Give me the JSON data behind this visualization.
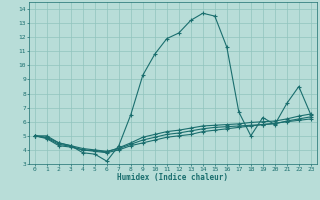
{
  "xlabel": "Humidex (Indice chaleur)",
  "xlim": [
    -0.5,
    23.5
  ],
  "ylim": [
    3,
    14.5
  ],
  "xticks": [
    0,
    1,
    2,
    3,
    4,
    5,
    6,
    7,
    8,
    9,
    10,
    11,
    12,
    13,
    14,
    15,
    16,
    17,
    18,
    19,
    20,
    21,
    22,
    23
  ],
  "yticks": [
    3,
    4,
    5,
    6,
    7,
    8,
    9,
    10,
    11,
    12,
    13,
    14
  ],
  "bg_color": "#b8ddd8",
  "grid_color": "#90c4be",
  "line_color": "#1a6e6e",
  "lines": [
    {
      "x": [
        0,
        1,
        2,
        3,
        4,
        5,
        6,
        7,
        8,
        9,
        10,
        11,
        12,
        13,
        14,
        15,
        16,
        17,
        18,
        19,
        20,
        21,
        22,
        23
      ],
      "y": [
        5.0,
        5.0,
        4.5,
        4.3,
        3.8,
        3.7,
        3.2,
        4.3,
        6.5,
        9.3,
        10.8,
        11.9,
        12.3,
        13.2,
        13.7,
        13.5,
        11.3,
        6.7,
        5.0,
        6.3,
        5.8,
        7.3,
        8.5,
        6.5
      ]
    },
    {
      "x": [
        0,
        1,
        2,
        3,
        4,
        5,
        6,
        7,
        8,
        9,
        10,
        11,
        12,
        13,
        14,
        15,
        16,
        17,
        18,
        19,
        20,
        21,
        22,
        23
      ],
      "y": [
        5.0,
        4.8,
        4.3,
        4.2,
        4.0,
        3.9,
        3.8,
        4.0,
        4.3,
        4.5,
        4.7,
        4.9,
        5.0,
        5.1,
        5.3,
        5.4,
        5.5,
        5.6,
        5.7,
        5.8,
        5.9,
        6.0,
        6.1,
        6.2
      ]
    },
    {
      "x": [
        0,
        1,
        2,
        3,
        4,
        5,
        6,
        7,
        8,
        9,
        10,
        11,
        12,
        13,
        14,
        15,
        16,
        17,
        18,
        19,
        20,
        21,
        22,
        23
      ],
      "y": [
        5.0,
        4.9,
        4.5,
        4.3,
        4.1,
        4.0,
        3.9,
        4.1,
        4.4,
        4.7,
        4.9,
        5.1,
        5.2,
        5.35,
        5.5,
        5.6,
        5.65,
        5.7,
        5.75,
        5.8,
        5.85,
        6.05,
        6.2,
        6.35
      ]
    },
    {
      "x": [
        0,
        1,
        2,
        3,
        4,
        5,
        6,
        7,
        8,
        9,
        10,
        11,
        12,
        13,
        14,
        15,
        16,
        17,
        18,
        19,
        20,
        21,
        22,
        23
      ],
      "y": [
        5.0,
        4.85,
        4.4,
        4.25,
        4.0,
        3.95,
        3.85,
        4.15,
        4.5,
        4.9,
        5.1,
        5.3,
        5.4,
        5.55,
        5.7,
        5.75,
        5.8,
        5.85,
        5.95,
        6.0,
        6.05,
        6.2,
        6.4,
        6.55
      ]
    }
  ]
}
